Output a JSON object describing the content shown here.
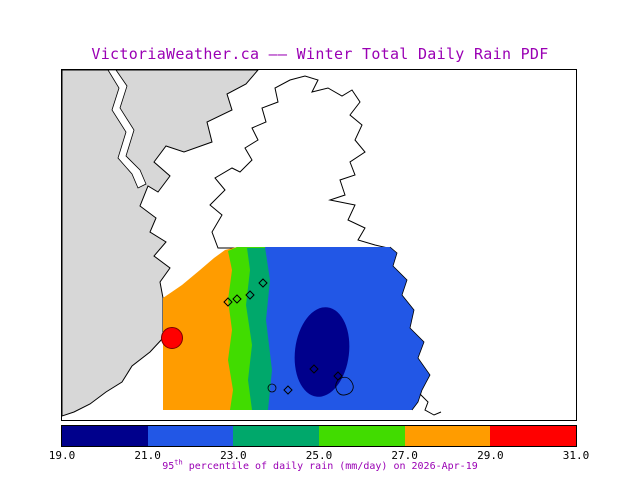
{
  "title": "VictoriaWeather.ca —— Winter Total Daily Rain PDF",
  "caption": {
    "prefix": "95",
    "superscript": "th",
    "suffix": " percentile of daily rain (mm/day) on 2026-Apr-19"
  },
  "colors": {
    "title": "#9a00b4",
    "caption": "#9a00b4",
    "tick_labels": "#000000",
    "map_border": "#000000",
    "coastline": "#000000"
  },
  "map": {
    "land_color": "#d7d7d7",
    "water_color": "#ffffff",
    "peak_marker_shape": "filled-circle",
    "station_marker_shape": "open-diamond"
  },
  "colorbar": {
    "tick_labels": [
      "19.0",
      "21.0",
      "23.0",
      "25.0",
      "27.0",
      "29.0",
      "31.0"
    ],
    "segments": [
      {
        "min": 19.0,
        "max": 21.0,
        "color": "#00008c"
      },
      {
        "min": 21.0,
        "max": 23.0,
        "color": "#2257e6"
      },
      {
        "min": 23.0,
        "max": 25.0,
        "color": "#00a86b"
      },
      {
        "min": 25.0,
        "max": 27.0,
        "color": "#41dc00"
      },
      {
        "min": 27.0,
        "max": 29.0,
        "color": "#ff9c00"
      },
      {
        "min": 29.0,
        "max": 31.0,
        "color": "#ff0000"
      }
    ]
  },
  "chart_data": {
    "type": "heatmap",
    "title": "VictoriaWeather.ca —— Winter Total Daily Rain PDF",
    "caption": "95th percentile of daily rain (mm/day) on 2026-Apr-19",
    "colorbar_ticks": [
      19.0,
      21.0,
      23.0,
      25.0,
      27.0,
      29.0,
      31.0
    ],
    "value_range": [
      19.0,
      31.0
    ],
    "legend_position": "bottom"
  }
}
